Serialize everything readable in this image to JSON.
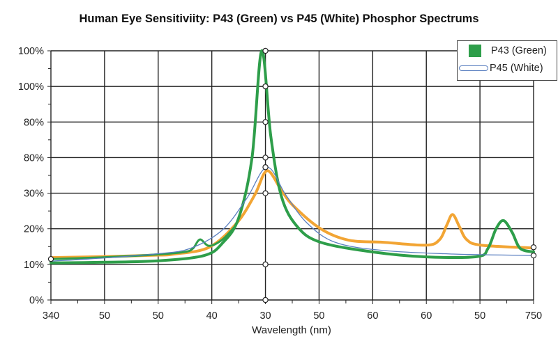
{
  "chart_data": {
    "type": "line",
    "title": "Human Eye Sensitiviity: P43 (Green) vs P45 (White) Phosphor Spectrums",
    "xlabel": "Wavelength (nm)",
    "ylabel": "",
    "x_tick_labels": [
      "340",
      "50",
      "50",
      "40",
      "30",
      "50",
      "60",
      "60",
      "50",
      "750"
    ],
    "y_tick_labels": [
      "0%",
      "10%",
      "20%",
      "30%",
      "80%",
      "80%",
      "100%",
      "100%"
    ],
    "x_units_note": "x values are in tick-index units (0 = first tick label, 9 = last)",
    "y_units_note": "y values are in gridline-index units (0 = first y tick label, 7 = last)",
    "xlim": [
      0,
      9
    ],
    "ylim": [
      0,
      7
    ],
    "grid": true,
    "legend": {
      "placement": "top-right",
      "entries": [
        {
          "label": "P43 (Green)",
          "color": "#2e9e4a"
        },
        {
          "label": "P45 (White)",
          "color": "#5a7fc0"
        }
      ]
    },
    "series": [
      {
        "name": "P43 (Green)",
        "color": "#2e9e4a",
        "width": 4,
        "points": [
          [
            0,
            1.04
          ],
          [
            1,
            1.06
          ],
          [
            2,
            1.1
          ],
          [
            2.86,
            1.25
          ],
          [
            3.2,
            1.6
          ],
          [
            3.5,
            2.3
          ],
          [
            3.75,
            4.0
          ],
          [
            3.93,
            7.0
          ],
          [
            4.1,
            4.6
          ],
          [
            4.3,
            2.9
          ],
          [
            4.6,
            2.05
          ],
          [
            5.03,
            1.62
          ],
          [
            6,
            1.35
          ],
          [
            7,
            1.21
          ],
          [
            7.95,
            1.22
          ],
          [
            8.15,
            1.45
          ],
          [
            8.3,
            2.0
          ],
          [
            8.44,
            2.23
          ],
          [
            8.6,
            1.9
          ],
          [
            8.75,
            1.45
          ],
          [
            9,
            1.35
          ]
        ]
      },
      {
        "name": "",
        "color": "#2e9e4a",
        "width": 3,
        "points": [
          [
            0,
            1.15
          ],
          [
            1,
            1.2
          ],
          [
            2,
            1.28
          ],
          [
            2.5,
            1.35
          ],
          [
            2.65,
            1.45
          ],
          [
            2.78,
            1.7
          ],
          [
            2.95,
            1.52
          ],
          [
            3.2,
            1.7
          ],
          [
            3.45,
            2.1
          ]
        ]
      },
      {
        "name": "P45 (White)",
        "color": "#5a7fc0",
        "width": 1.3,
        "points": [
          [
            0,
            1.09
          ],
          [
            1,
            1.18
          ],
          [
            2,
            1.3
          ],
          [
            2.6,
            1.45
          ],
          [
            3.2,
            1.97
          ],
          [
            3.65,
            2.85
          ],
          [
            4.03,
            3.73
          ],
          [
            4.38,
            2.95
          ],
          [
            4.77,
            2.17
          ],
          [
            5.3,
            1.62
          ],
          [
            6.2,
            1.39
          ],
          [
            7.5,
            1.29
          ],
          [
            9,
            1.25
          ]
        ]
      },
      {
        "name": "",
        "color": "#f2a534",
        "width": 4,
        "points": [
          [
            0,
            1.19
          ],
          [
            1,
            1.22
          ],
          [
            2,
            1.26
          ],
          [
            2.3,
            1.29
          ],
          [
            2.95,
            1.48
          ],
          [
            3.47,
            2.17
          ],
          [
            3.8,
            2.95
          ],
          [
            4.03,
            3.63
          ],
          [
            4.29,
            3.1
          ],
          [
            4.51,
            2.66
          ],
          [
            5.03,
            2.0
          ],
          [
            5.55,
            1.68
          ],
          [
            6.2,
            1.62
          ],
          [
            7.0,
            1.54
          ],
          [
            7.25,
            1.7
          ],
          [
            7.38,
            2.1
          ],
          [
            7.49,
            2.4
          ],
          [
            7.62,
            2.05
          ],
          [
            7.75,
            1.7
          ],
          [
            8.02,
            1.54
          ],
          [
            9,
            1.46
          ]
        ]
      }
    ],
    "markers": [
      [
        4,
        0
      ],
      [
        4,
        1
      ],
      [
        4,
        3
      ],
      [
        4,
        4
      ],
      [
        4,
        5
      ],
      [
        4,
        6
      ],
      [
        4,
        7
      ],
      [
        4,
        3.73
      ],
      [
        0,
        1.15
      ],
      [
        9,
        1.48
      ],
      [
        9,
        1.25
      ]
    ]
  }
}
